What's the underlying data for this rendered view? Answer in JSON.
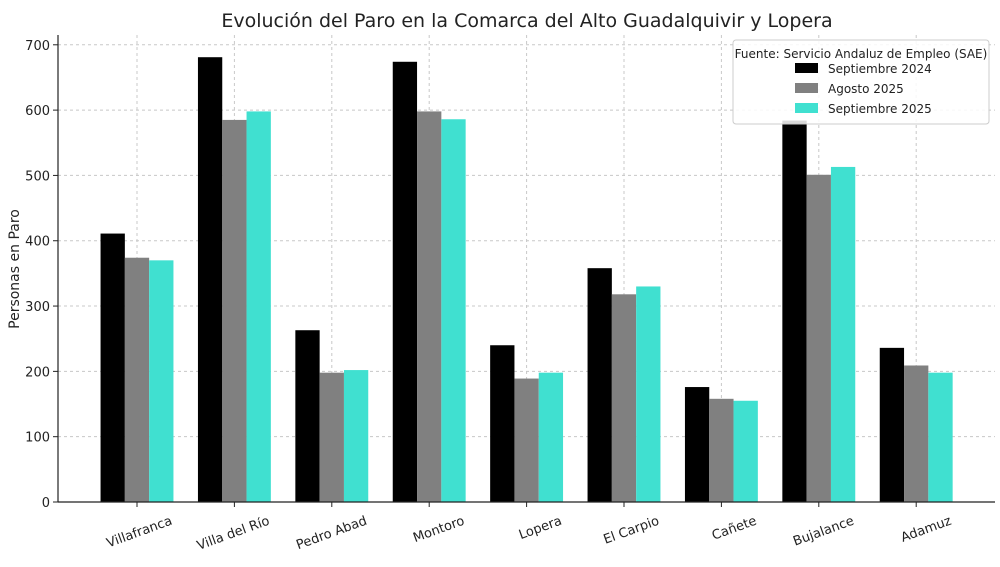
{
  "chart_data": {
    "type": "bar",
    "title": "Evolución del Paro en la Comarca del Alto Guadalquivir y Lopera",
    "xlabel": "",
    "ylabel": "Personas en Paro",
    "ylim": [
      0,
      715
    ],
    "yticks": [
      0,
      100,
      200,
      300,
      400,
      500,
      600,
      700
    ],
    "grid": true,
    "legend_placement": "top-right",
    "legend_title": "Fuente: Servicio Andaluz de Empleo (SAE)",
    "categories": [
      "Villafranca",
      "Villa del Río",
      "Pedro Abad",
      "Montoro",
      "Lopera",
      "El Carpio",
      "Cañete",
      "Bujalance",
      "Adamuz"
    ],
    "series": [
      {
        "name": "Septiembre 2024",
        "color": "#000000",
        "values": [
          411,
          681,
          263,
          674,
          240,
          358,
          176,
          584,
          236
        ]
      },
      {
        "name": "Agosto 2025",
        "color": "#808080",
        "values": [
          374,
          585,
          198,
          598,
          189,
          318,
          158,
          501,
          209
        ]
      },
      {
        "name": "Septiembre 2025",
        "color": "#40e0d0",
        "values": [
          370,
          598,
          202,
          586,
          198,
          330,
          155,
          513,
          198
        ]
      }
    ]
  }
}
